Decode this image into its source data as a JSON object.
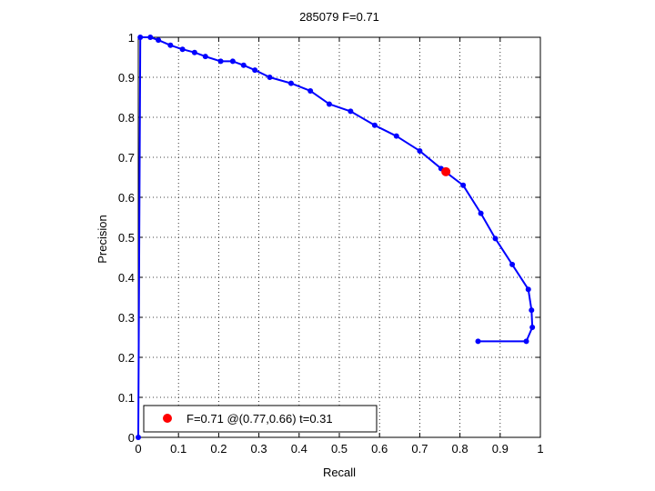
{
  "chart_data": {
    "type": "line",
    "title": "285079 F=0.71",
    "xlabel": "Recall",
    "ylabel": "Precision",
    "xlim": [
      0,
      1
    ],
    "ylim": [
      0,
      1
    ],
    "xticks": [
      "0",
      "0.1",
      "0.2",
      "0.3",
      "0.4",
      "0.5",
      "0.6",
      "0.7",
      "0.8",
      "0.9",
      "1"
    ],
    "yticks": [
      "0",
      "0.1",
      "0.2",
      "0.3",
      "0.4",
      "0.5",
      "0.6",
      "0.7",
      "0.8",
      "0.9",
      "1"
    ],
    "grid": true,
    "legend_position": "bottom-left",
    "series": [
      {
        "color": "#0000ff",
        "marker": "dot",
        "x": [
          0.845,
          0.965,
          0.98,
          0.978,
          0.97,
          0.93,
          0.888,
          0.852,
          0.808,
          0.753,
          0.7,
          0.642,
          0.588,
          0.528,
          0.475,
          0.428,
          0.38,
          0.327,
          0.29,
          0.262,
          0.235,
          0.205,
          0.167,
          0.14,
          0.11,
          0.08,
          0.05,
          0.03,
          0.005,
          0.0
        ],
        "y": [
          0.24,
          0.24,
          0.275,
          0.318,
          0.37,
          0.432,
          0.497,
          0.56,
          0.63,
          0.672,
          0.716,
          0.753,
          0.78,
          0.815,
          0.833,
          0.866,
          0.885,
          0.9,
          0.918,
          0.93,
          0.94,
          0.94,
          0.952,
          0.962,
          0.97,
          0.98,
          0.993,
          1.0,
          1.0,
          0.0
        ]
      },
      {
        "color": "#ff0000",
        "marker": "big-dot",
        "x": [
          0.765
        ],
        "y": [
          0.664
        ]
      }
    ],
    "legend": {
      "text": "F=0.71 @(0.77,0.66) t=0.31",
      "marker_color": "#ff0000"
    }
  }
}
